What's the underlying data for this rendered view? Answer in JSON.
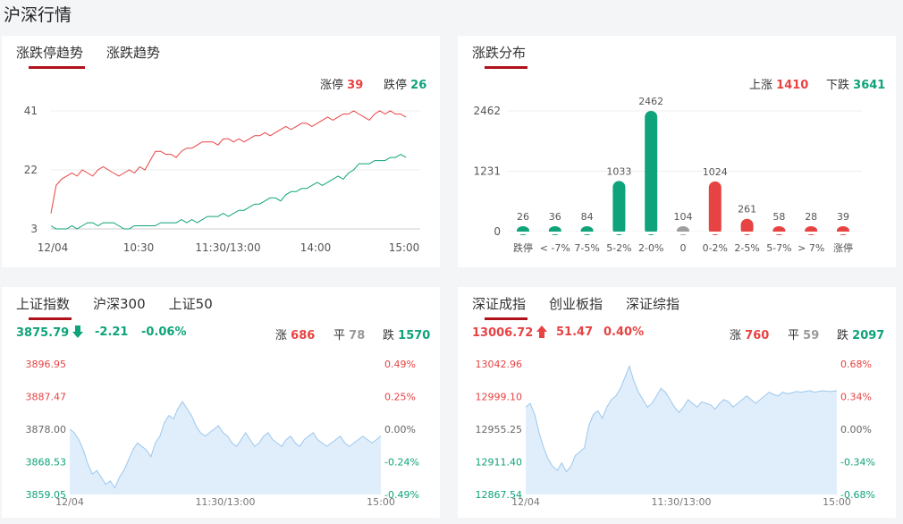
{
  "page_title": "沪深行情",
  "trend_panel": {
    "tabs": [
      "涨跌停趋势",
      "涨跌趋势"
    ],
    "limit_up_label": "涨停",
    "limit_up_value": "39",
    "limit_down_label": "跌停",
    "limit_down_value": "26",
    "colors": {
      "up": "#e84343",
      "down": "#0ea37a"
    }
  },
  "dist_panel": {
    "tabs": [
      "涨跌分布"
    ],
    "up_label": "上涨",
    "up_value": "1410",
    "down_label": "下跌",
    "down_value": "3641"
  },
  "sh_panel": {
    "tabs": [
      "上证指数",
      "沪深300",
      "上证50"
    ],
    "price": "3875.79",
    "change": "-2.21",
    "change_pct": "-0.06%",
    "rise_label": "涨",
    "rise_value": "686",
    "flat_label": "平",
    "flat_value": "78",
    "fall_label": "跌",
    "fall_value": "1570"
  },
  "sz_panel": {
    "tabs": [
      "深证成指",
      "创业板指",
      "深证综指"
    ],
    "price": "13006.72",
    "change": "51.47",
    "change_pct": "0.40%",
    "rise_label": "涨",
    "rise_value": "760",
    "flat_label": "平",
    "flat_value": "59",
    "fall_label": "跌",
    "fall_value": "2097"
  },
  "chart_data": [
    {
      "id": "limit-trend",
      "type": "line",
      "x_labels": [
        "12/04",
        "10:30",
        "11:30/13:00",
        "14:00",
        "15:00"
      ],
      "y_ticks": [
        "41",
        "22",
        "3"
      ],
      "ylim": [
        3,
        41
      ],
      "series": [
        {
          "name": "涨停",
          "color": "#e84343",
          "values": [
            8,
            17,
            19,
            20,
            21,
            20,
            22,
            21,
            20,
            22,
            23,
            22,
            21,
            20,
            21,
            22,
            21,
            23,
            22,
            25,
            28,
            28,
            27,
            27,
            26,
            28,
            29,
            29,
            30,
            31,
            31,
            31,
            30,
            32,
            32,
            31,
            32,
            31,
            32,
            33,
            33,
            34,
            33,
            34,
            35,
            36,
            35,
            36,
            37,
            37,
            36,
            37,
            38,
            39,
            38,
            39,
            40,
            40,
            41,
            40,
            39,
            38,
            40,
            41,
            40,
            41,
            40,
            40,
            39
          ]
        },
        {
          "name": "跌停",
          "color": "#0ea37a",
          "values": [
            4,
            3,
            3,
            3,
            4,
            3,
            4,
            5,
            5,
            4,
            5,
            5,
            5,
            4,
            3,
            3,
            4,
            4,
            4,
            4,
            4,
            5,
            5,
            5,
            5,
            6,
            5,
            6,
            5,
            6,
            7,
            7,
            7,
            8,
            7,
            8,
            9,
            9,
            10,
            11,
            11,
            12,
            13,
            13,
            12,
            14,
            15,
            15,
            16,
            16,
            17,
            18,
            17,
            18,
            19,
            20,
            19,
            21,
            22,
            24,
            24,
            24,
            25,
            25,
            25,
            26,
            26,
            27,
            26
          ]
        }
      ]
    },
    {
      "id": "distribution",
      "type": "bar",
      "categories": [
        "跌停",
        "< -7%",
        "7-5%",
        "5-2%",
        "2-0%",
        "0",
        "0-2%",
        "2-5%",
        "5-7%",
        "> 7%",
        "涨停"
      ],
      "values": [
        26,
        36,
        84,
        1033,
        2462,
        104,
        1024,
        261,
        58,
        28,
        39
      ],
      "colors": [
        "#0ea37a",
        "#0ea37a",
        "#0ea37a",
        "#0ea37a",
        "#0ea37a",
        "#9e9e9e",
        "#e84343",
        "#e84343",
        "#e84343",
        "#e84343",
        "#e84343"
      ],
      "y_ticks": [
        "2462",
        "1231",
        "0"
      ],
      "ylim": [
        0,
        2462
      ]
    },
    {
      "id": "sh-index",
      "type": "area",
      "left_ticks": [
        "3896.95",
        "3887.47",
        "3878.00",
        "3868.53",
        "3859.05"
      ],
      "right_ticks": [
        "0.49%",
        "0.25%",
        "0.00%",
        "-0.24%",
        "-0.49%"
      ],
      "x_labels": [
        "12/04",
        "11:30/13:00",
        "15:00"
      ],
      "ylim": [
        3859.05,
        3896.95
      ],
      "values": [
        3878,
        3877,
        3875,
        3872,
        3868,
        3865,
        3866,
        3864,
        3862,
        3863,
        3861,
        3864,
        3866,
        3869,
        3872,
        3874,
        3873,
        3872,
        3870,
        3874,
        3876,
        3880,
        3882,
        3881,
        3884,
        3886,
        3884,
        3882,
        3879,
        3877,
        3876,
        3877,
        3878,
        3879,
        3877,
        3876,
        3874,
        3873,
        3875,
        3877,
        3875,
        3873,
        3874,
        3876,
        3877,
        3875,
        3874,
        3873,
        3875,
        3876,
        3874,
        3873,
        3875,
        3876,
        3877,
        3875,
        3874,
        3873,
        3874,
        3875,
        3876,
        3874,
        3873,
        3874,
        3875,
        3876,
        3875,
        3874,
        3875,
        3876
      ]
    },
    {
      "id": "sz-index",
      "type": "area",
      "left_ticks": [
        "13042.96",
        "12999.10",
        "12955.25",
        "12911.40",
        "12867.54"
      ],
      "right_ticks": [
        "0.68%",
        "0.34%",
        "0.00%",
        "-0.34%",
        "-0.68%"
      ],
      "x_labels": [
        "12/04",
        "11:30/13:00",
        "15:00"
      ],
      "ylim": [
        12867.54,
        13042.96
      ],
      "values": [
        12985,
        12990,
        12975,
        12950,
        12930,
        12915,
        12905,
        12900,
        12910,
        12898,
        12905,
        12920,
        12925,
        12930,
        12960,
        12975,
        12980,
        12970,
        12985,
        12995,
        13000,
        13010,
        13025,
        13040,
        13020,
        13005,
        12995,
        12985,
        12990,
        13000,
        13010,
        13005,
        12995,
        12985,
        12978,
        12985,
        12995,
        12990,
        12985,
        12992,
        12990,
        12988,
        12982,
        12990,
        12995,
        12992,
        12985,
        12990,
        12995,
        13000,
        12995,
        12990,
        12995,
        13000,
        13005,
        13002,
        13000,
        13005,
        13003,
        13004,
        13006,
        13005,
        13006,
        13007,
        13005,
        13006,
        13007,
        13006,
        13006,
        13007
      ]
    }
  ]
}
